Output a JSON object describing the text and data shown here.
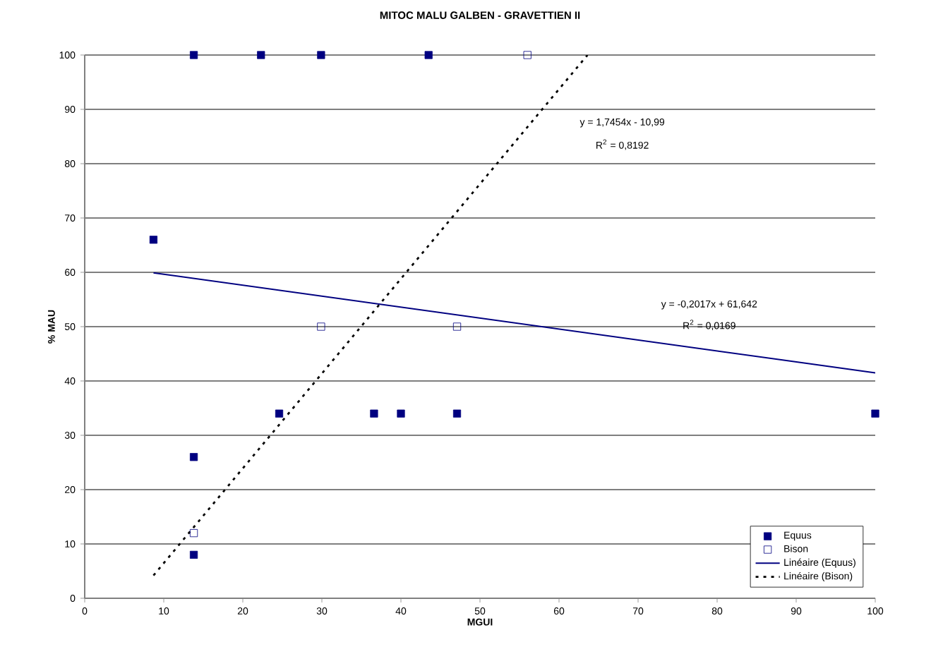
{
  "chart_data": {
    "type": "scatter",
    "title": "MITOC MALU GALBEN - GRAVETTIEN II",
    "xlabel": "MGUI",
    "ylabel": "% MAU",
    "xlim": [
      0,
      100
    ],
    "xticks": [
      0,
      10,
      20,
      30,
      40,
      50,
      60,
      70,
      80,
      90,
      100
    ],
    "ylim": [
      0,
      100
    ],
    "yticks": [
      0,
      10,
      20,
      30,
      40,
      50,
      60,
      70,
      80,
      90,
      100
    ],
    "grid": "y",
    "legend": "bottom right",
    "series": [
      {
        "name": "Equus",
        "color": "#000080",
        "marker": "square",
        "x": [
          8.7,
          13.8,
          13.8,
          13.8,
          22.3,
          24.6,
          29.9,
          36.6,
          40,
          43.5,
          47.1,
          100
        ],
        "values": [
          66,
          100,
          26,
          8,
          100,
          34,
          100,
          34,
          34,
          100,
          34,
          34
        ]
      },
      {
        "name": "Bison",
        "color": "#000080",
        "marker": "square",
        "x": [
          13.8,
          29.9,
          47.1,
          56
        ],
        "values": [
          12,
          50,
          50,
          100
        ]
      },
      {
        "name": "Linéaire (Equus)",
        "type": "line",
        "color": "#000080",
        "line_style": "solid",
        "x": [
          8.7,
          100
        ],
        "values": [
          59.9,
          41.5
        ]
      },
      {
        "name": "Linéaire (Bison)",
        "type": "line",
        "color": "#000000",
        "line_style": "dotted",
        "x": [
          8.7,
          63.6
        ],
        "values": [
          4.2,
          100
        ]
      }
    ],
    "annotations": [
      "y = 1,7454x - 10,99",
      "R$^{2}$ = 0,8192",
      "y = -0,2017x + 61,642",
      "R$^{2}$ = 0,0169"
    ]
  }
}
